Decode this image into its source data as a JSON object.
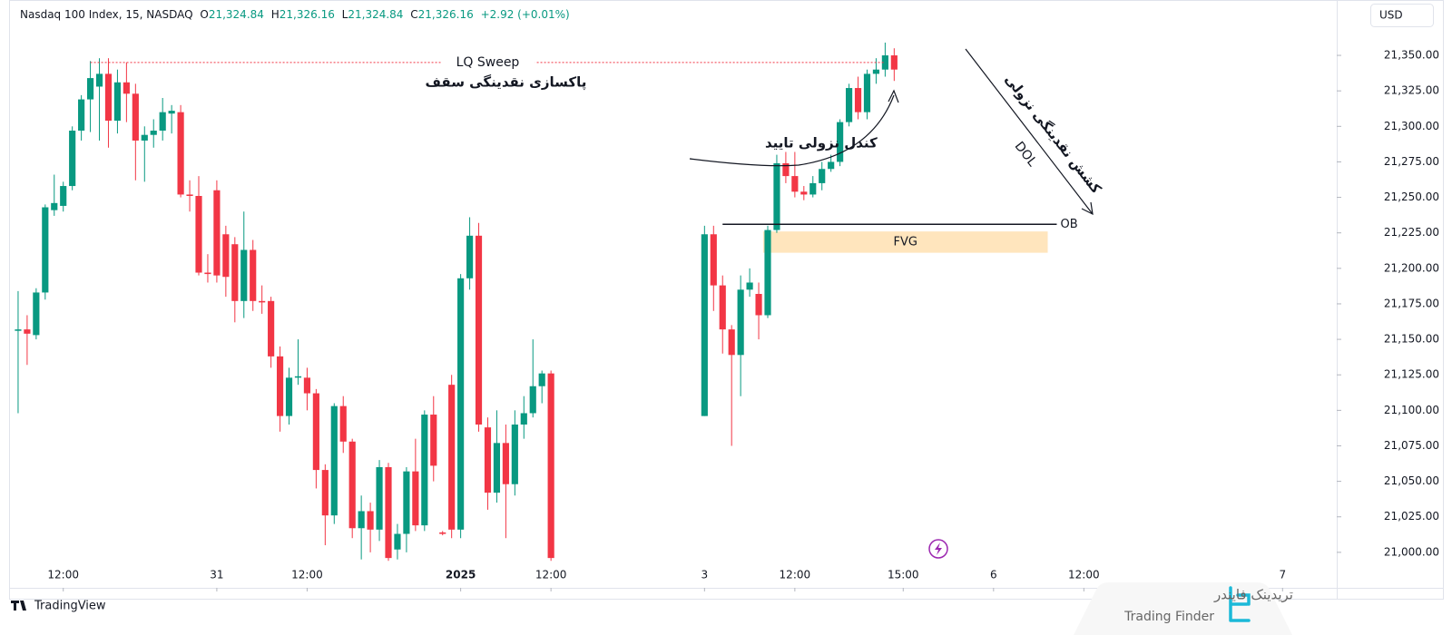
{
  "chart_data": {
    "type": "candlestick",
    "header": {
      "symbol": "Nasdaq 100 Index, 15, NASDAQ",
      "ohlc": [
        {
          "label": "O",
          "value": "21,324.84"
        },
        {
          "label": "H",
          "value": "21,326.16"
        },
        {
          "label": "L",
          "value": "21,324.84"
        },
        {
          "label": "C",
          "value": "21,326.16"
        }
      ],
      "change": "+2.92 (+0.01%)"
    },
    "currency": "USD",
    "brand": "TradingView",
    "up_color": "#089981",
    "down_color": "#f23645",
    "grid": false,
    "x": [
      0,
      1,
      2,
      3,
      4,
      5,
      6,
      7,
      8,
      9,
      10,
      11,
      12,
      13,
      14,
      15,
      16,
      17,
      18,
      19,
      20,
      21,
      22,
      23,
      24,
      25,
      26,
      27,
      28,
      29,
      30,
      31,
      32,
      33,
      34,
      35,
      36,
      37,
      38,
      39,
      40,
      41,
      42,
      43,
      44,
      45,
      46,
      47,
      48,
      49,
      50,
      51,
      52,
      53,
      54,
      55,
      56,
      57,
      58,
      59,
      76,
      77,
      78,
      79,
      80,
      81,
      82,
      83,
      84,
      85,
      86,
      87,
      88,
      89,
      90,
      91,
      92,
      93,
      94,
      95,
      96,
      97
    ],
    "open": [
      21156,
      21157,
      21153,
      21183,
      21241,
      21244,
      21258,
      21297,
      21319,
      21328,
      21337,
      21304,
      21331,
      21323,
      21290,
      21294,
      21297,
      21309,
      21310,
      21252,
      21251,
      21197,
      21255,
      21224,
      21217,
      21177,
      21213,
      21177,
      21177,
      21138,
      21096,
      21123,
      21123,
      21112,
      21058,
      21026,
      21103,
      21078,
      21017,
      21029,
      21016,
      21060,
      21002,
      21013,
      21057,
      21019,
      21097,
      21014,
      21118,
      21016,
      21193,
      21223,
      21088,
      21042,
      21077,
      21048,
      21090,
      21098,
      21117,
      21126,
      21096,
      21224,
      21188,
      21157,
      21139,
      21185,
      21182,
      21167,
      21227,
      21274,
      21265,
      21254,
      21252,
      21260,
      21270,
      21275,
      21303,
      21327,
      21310,
      21337,
      21340,
      21350
    ],
    "high": [
      21184,
      21167,
      21186,
      21245,
      21266,
      21261,
      21300,
      21322,
      21346,
      21348,
      21348,
      21340,
      21345,
      21330,
      21300,
      21305,
      21320,
      21315,
      21315,
      21262,
      21265,
      21210,
      21262,
      21230,
      21222,
      21240,
      21220,
      21188,
      21180,
      21145,
      21130,
      21150,
      21130,
      21115,
      21062,
      21105,
      21110,
      21080,
      21040,
      21035,
      21065,
      21063,
      21020,
      21060,
      21080,
      21100,
      21110,
      21015,
      21125,
      21196,
      21236,
      21232,
      21095,
      21100,
      21090,
      21100,
      21110,
      21150,
      21128,
      21128,
      21230,
      21230,
      21195,
      21160,
      21195,
      21200,
      21190,
      21230,
      21280,
      21282,
      21282,
      21258,
      21265,
      21275,
      21280,
      21305,
      21330,
      21335,
      21340,
      21348,
      21359,
      21355
    ],
    "low": [
      21098,
      21132,
      21150,
      21178,
      21237,
      21240,
      21255,
      21290,
      21296,
      21290,
      21285,
      21295,
      21303,
      21262,
      21261,
      21285,
      21290,
      21295,
      21250,
      21240,
      21195,
      21190,
      21190,
      21180,
      21162,
      21165,
      21170,
      21168,
      21130,
      21085,
      21090,
      21118,
      21100,
      21045,
      21005,
      21020,
      21070,
      21010,
      20995,
      21000,
      21008,
      20994,
      20995,
      21000,
      21015,
      21015,
      21050,
      21012,
      21010,
      21010,
      21185,
      21085,
      21030,
      21035,
      21010,
      21040,
      21080,
      21095,
      21105,
      20994,
      21096,
      21170,
      21140,
      21075,
      21110,
      21180,
      21150,
      21165,
      21225,
      21260,
      21250,
      21248,
      21250,
      21255,
      21268,
      21272,
      21300,
      21305,
      21305,
      21330,
      21335,
      21332
    ],
    "close": [
      21157,
      21154,
      21183,
      21243,
      21246,
      21258,
      21297,
      21319,
      21334,
      21337,
      21304,
      21331,
      21323,
      21290,
      21294,
      21297,
      21310,
      21311,
      21252,
      21251,
      21197,
      21196,
      21195,
      21194,
      21177,
      21213,
      21177,
      21176,
      21138,
      21096,
      21123,
      21124,
      21112,
      21058,
      21026,
      21103,
      21078,
      21017,
      21029,
      21016,
      21060,
      20996,
      21013,
      21057,
      21019,
      21097,
      21061,
      21013,
      21016,
      21193,
      21223,
      21090,
      21042,
      21077,
      21048,
      21090,
      21098,
      21117,
      21126,
      20996,
      21224,
      21188,
      21157,
      21139,
      21185,
      21190,
      21167,
      21227,
      21274,
      21265,
      21254,
      21252,
      21260,
      21270,
      21275,
      21303,
      21327,
      21310,
      21337,
      21340,
      21350,
      21340
    ],
    "xlim": [
      -1,
      146
    ],
    "xticks": [
      {
        "value": 5,
        "label": "12:00"
      },
      {
        "value": 22,
        "label": "31"
      },
      {
        "value": 32,
        "label": "12:00"
      },
      {
        "value": 49,
        "label": "2025"
      },
      {
        "value": 59,
        "label": "12:00"
      },
      {
        "value": 76,
        "label": "3"
      },
      {
        "value": 86,
        "label": "12:00"
      },
      {
        "value": 98,
        "label": "15:00"
      },
      {
        "value": 108,
        "label": "6"
      },
      {
        "value": 118,
        "label": "12:00"
      },
      {
        "value": 140,
        "label": "7"
      }
    ],
    "ylim": [
      20975,
      21389
    ],
    "yticks": [
      {
        "value": 21000,
        "label": "21,000.00"
      },
      {
        "value": 21025,
        "label": "21,025.00"
      },
      {
        "value": 21050,
        "label": "21,050.00"
      },
      {
        "value": 21075,
        "label": "21,075.00"
      },
      {
        "value": 21100,
        "label": "21,100.00"
      },
      {
        "value": 21125,
        "label": "21,125.00"
      },
      {
        "value": 21150,
        "label": "21,150.00"
      },
      {
        "value": 21175,
        "label": "21,175.00"
      },
      {
        "value": 21200,
        "label": "21,200.00"
      },
      {
        "value": 21225,
        "label": "21,225.00"
      },
      {
        "value": 21250,
        "label": "21,250.00"
      },
      {
        "value": 21275,
        "label": "21,275.00"
      },
      {
        "value": 21300,
        "label": "21,300.00"
      },
      {
        "value": 21325,
        "label": "21,325.00"
      },
      {
        "value": 21350,
        "label": "21,350.00"
      }
    ],
    "annotations": {
      "lq_sweep": {
        "text": "LQ Sweep",
        "subtext": "پاکسازی نقدینگی سقف",
        "level": 21345,
        "from": 8,
        "to": 96
      },
      "confirm": {
        "text": "کندل نزولی تایید"
      },
      "ob": {
        "text": "OB",
        "level": 21231,
        "from": 78,
        "to": 115
      },
      "fvg": {
        "text": "FVG",
        "top": 21226,
        "bottom": 21211,
        "from": 82.5,
        "to": 114
      },
      "dol": {
        "text": "DOL",
        "subtext": "کشش نقدینگی نزولی"
      }
    },
    "watermark": {
      "title": "تریدینک فایندر",
      "subtitle": "Trading Finder"
    }
  }
}
